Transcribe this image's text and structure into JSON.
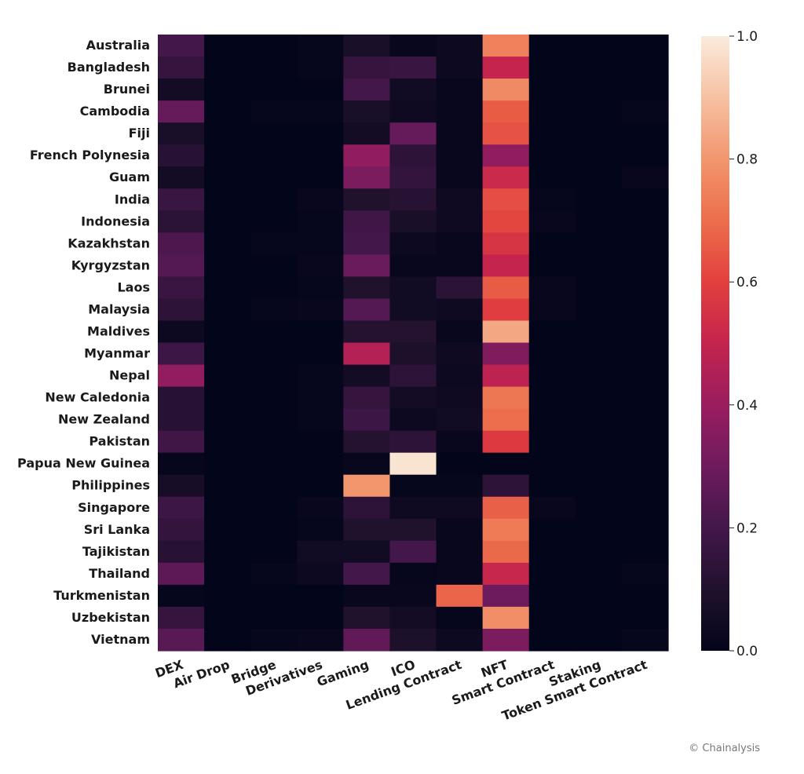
{
  "chart_data": {
    "type": "heatmap",
    "rows": [
      "Australia",
      "Bangladesh",
      "Brunei",
      "Cambodia",
      "Fiji",
      "French Polynesia",
      "Guam",
      "India",
      "Indonesia",
      "Kazakhstan",
      "Kyrgyzstan",
      "Laos",
      "Malaysia",
      "Maldives",
      "Myanmar",
      "Nepal",
      "New Caledonia",
      "New Zealand",
      "Pakistan",
      "Papua New Guinea",
      "Philippines",
      "Singapore",
      "Sri Lanka",
      "Tajikistan",
      "Thailand",
      "Turkmenistan",
      "Uzbekistan",
      "Vietnam"
    ],
    "columns": [
      "DEX",
      "Air Drop",
      "Bridge",
      "Derivatives",
      "Gaming",
      "ICO",
      "Lending Contract",
      "NFT",
      "Smart Contract",
      "Staking",
      "Token Smart Contract"
    ],
    "values": [
      [
        0.2,
        0.0,
        0.0,
        0.01,
        0.08,
        0.02,
        0.03,
        0.75,
        0.0,
        0.0,
        0.0
      ],
      [
        0.16,
        0.0,
        0.0,
        0.01,
        0.16,
        0.17,
        0.03,
        0.5,
        0.0,
        0.0,
        0.0
      ],
      [
        0.06,
        0.0,
        0.0,
        0.0,
        0.2,
        0.05,
        0.02,
        0.77,
        0.0,
        0.0,
        0.0
      ],
      [
        0.28,
        0.0,
        0.01,
        0.01,
        0.08,
        0.04,
        0.02,
        0.66,
        0.0,
        0.0,
        0.01
      ],
      [
        0.08,
        0.0,
        0.0,
        0.0,
        0.06,
        0.28,
        0.02,
        0.64,
        0.0,
        0.0,
        0.0
      ],
      [
        0.12,
        0.0,
        0.0,
        0.0,
        0.38,
        0.14,
        0.02,
        0.38,
        0.0,
        0.0,
        0.0
      ],
      [
        0.06,
        0.0,
        0.0,
        0.0,
        0.33,
        0.15,
        0.02,
        0.52,
        0.0,
        0.0,
        0.02
      ],
      [
        0.17,
        0.0,
        0.0,
        0.02,
        0.1,
        0.12,
        0.04,
        0.63,
        0.01,
        0.0,
        0.0
      ],
      [
        0.13,
        0.0,
        0.0,
        0.01,
        0.19,
        0.08,
        0.04,
        0.61,
        0.02,
        0.0,
        0.0
      ],
      [
        0.22,
        0.0,
        0.01,
        0.01,
        0.2,
        0.03,
        0.02,
        0.56,
        0.0,
        0.0,
        0.0
      ],
      [
        0.24,
        0.0,
        0.0,
        0.02,
        0.29,
        0.02,
        0.02,
        0.5,
        0.0,
        0.0,
        0.0
      ],
      [
        0.17,
        0.0,
        0.0,
        0.01,
        0.1,
        0.05,
        0.13,
        0.66,
        0.02,
        0.0,
        0.0
      ],
      [
        0.14,
        0.0,
        0.01,
        0.02,
        0.24,
        0.05,
        0.04,
        0.59,
        0.02,
        0.0,
        0.0
      ],
      [
        0.03,
        0.0,
        0.0,
        0.0,
        0.11,
        0.11,
        0.02,
        0.84,
        0.0,
        0.0,
        0.0
      ],
      [
        0.18,
        0.0,
        0.0,
        0.0,
        0.46,
        0.09,
        0.04,
        0.34,
        0.0,
        0.0,
        0.0
      ],
      [
        0.38,
        0.0,
        0.0,
        0.01,
        0.06,
        0.14,
        0.03,
        0.48,
        0.0,
        0.0,
        0.0
      ],
      [
        0.12,
        0.0,
        0.0,
        0.01,
        0.16,
        0.06,
        0.04,
        0.72,
        0.0,
        0.0,
        0.0
      ],
      [
        0.12,
        0.0,
        0.0,
        0.01,
        0.18,
        0.03,
        0.05,
        0.7,
        0.0,
        0.0,
        0.0
      ],
      [
        0.19,
        0.0,
        0.0,
        0.0,
        0.11,
        0.14,
        0.02,
        0.58,
        0.0,
        0.0,
        0.0
      ],
      [
        0.01,
        0.0,
        0.0,
        0.0,
        0.02,
        0.98,
        0.0,
        0.0,
        0.0,
        0.0,
        0.0
      ],
      [
        0.07,
        0.0,
        0.0,
        0.0,
        0.8,
        0.01,
        0.01,
        0.14,
        0.0,
        0.0,
        0.0
      ],
      [
        0.18,
        0.0,
        0.0,
        0.02,
        0.14,
        0.04,
        0.04,
        0.67,
        0.02,
        0.0,
        0.0
      ],
      [
        0.15,
        0.0,
        0.0,
        0.01,
        0.1,
        0.1,
        0.02,
        0.73,
        0.0,
        0.0,
        0.0
      ],
      [
        0.12,
        0.0,
        0.0,
        0.05,
        0.05,
        0.2,
        0.02,
        0.69,
        0.0,
        0.0,
        0.0
      ],
      [
        0.26,
        0.0,
        0.01,
        0.03,
        0.2,
        0.01,
        0.02,
        0.51,
        0.0,
        0.0,
        0.01
      ],
      [
        0.01,
        0.0,
        0.0,
        0.0,
        0.02,
        0.02,
        0.68,
        0.3,
        0.0,
        0.0,
        0.0
      ],
      [
        0.16,
        0.0,
        0.0,
        0.0,
        0.1,
        0.06,
        0.01,
        0.78,
        0.0,
        0.0,
        0.0
      ],
      [
        0.25,
        0.0,
        0.01,
        0.02,
        0.27,
        0.09,
        0.03,
        0.33,
        0.0,
        0.0,
        0.01
      ]
    ],
    "colorbar": {
      "min": 0.0,
      "max": 1.0,
      "ticks": [
        "0.0",
        "0.2",
        "0.4",
        "0.6",
        "0.8",
        "1.0"
      ],
      "colormap": "rocket"
    },
    "title": "",
    "xlabel": "",
    "ylabel": ""
  },
  "credit": "© Chainalysis"
}
